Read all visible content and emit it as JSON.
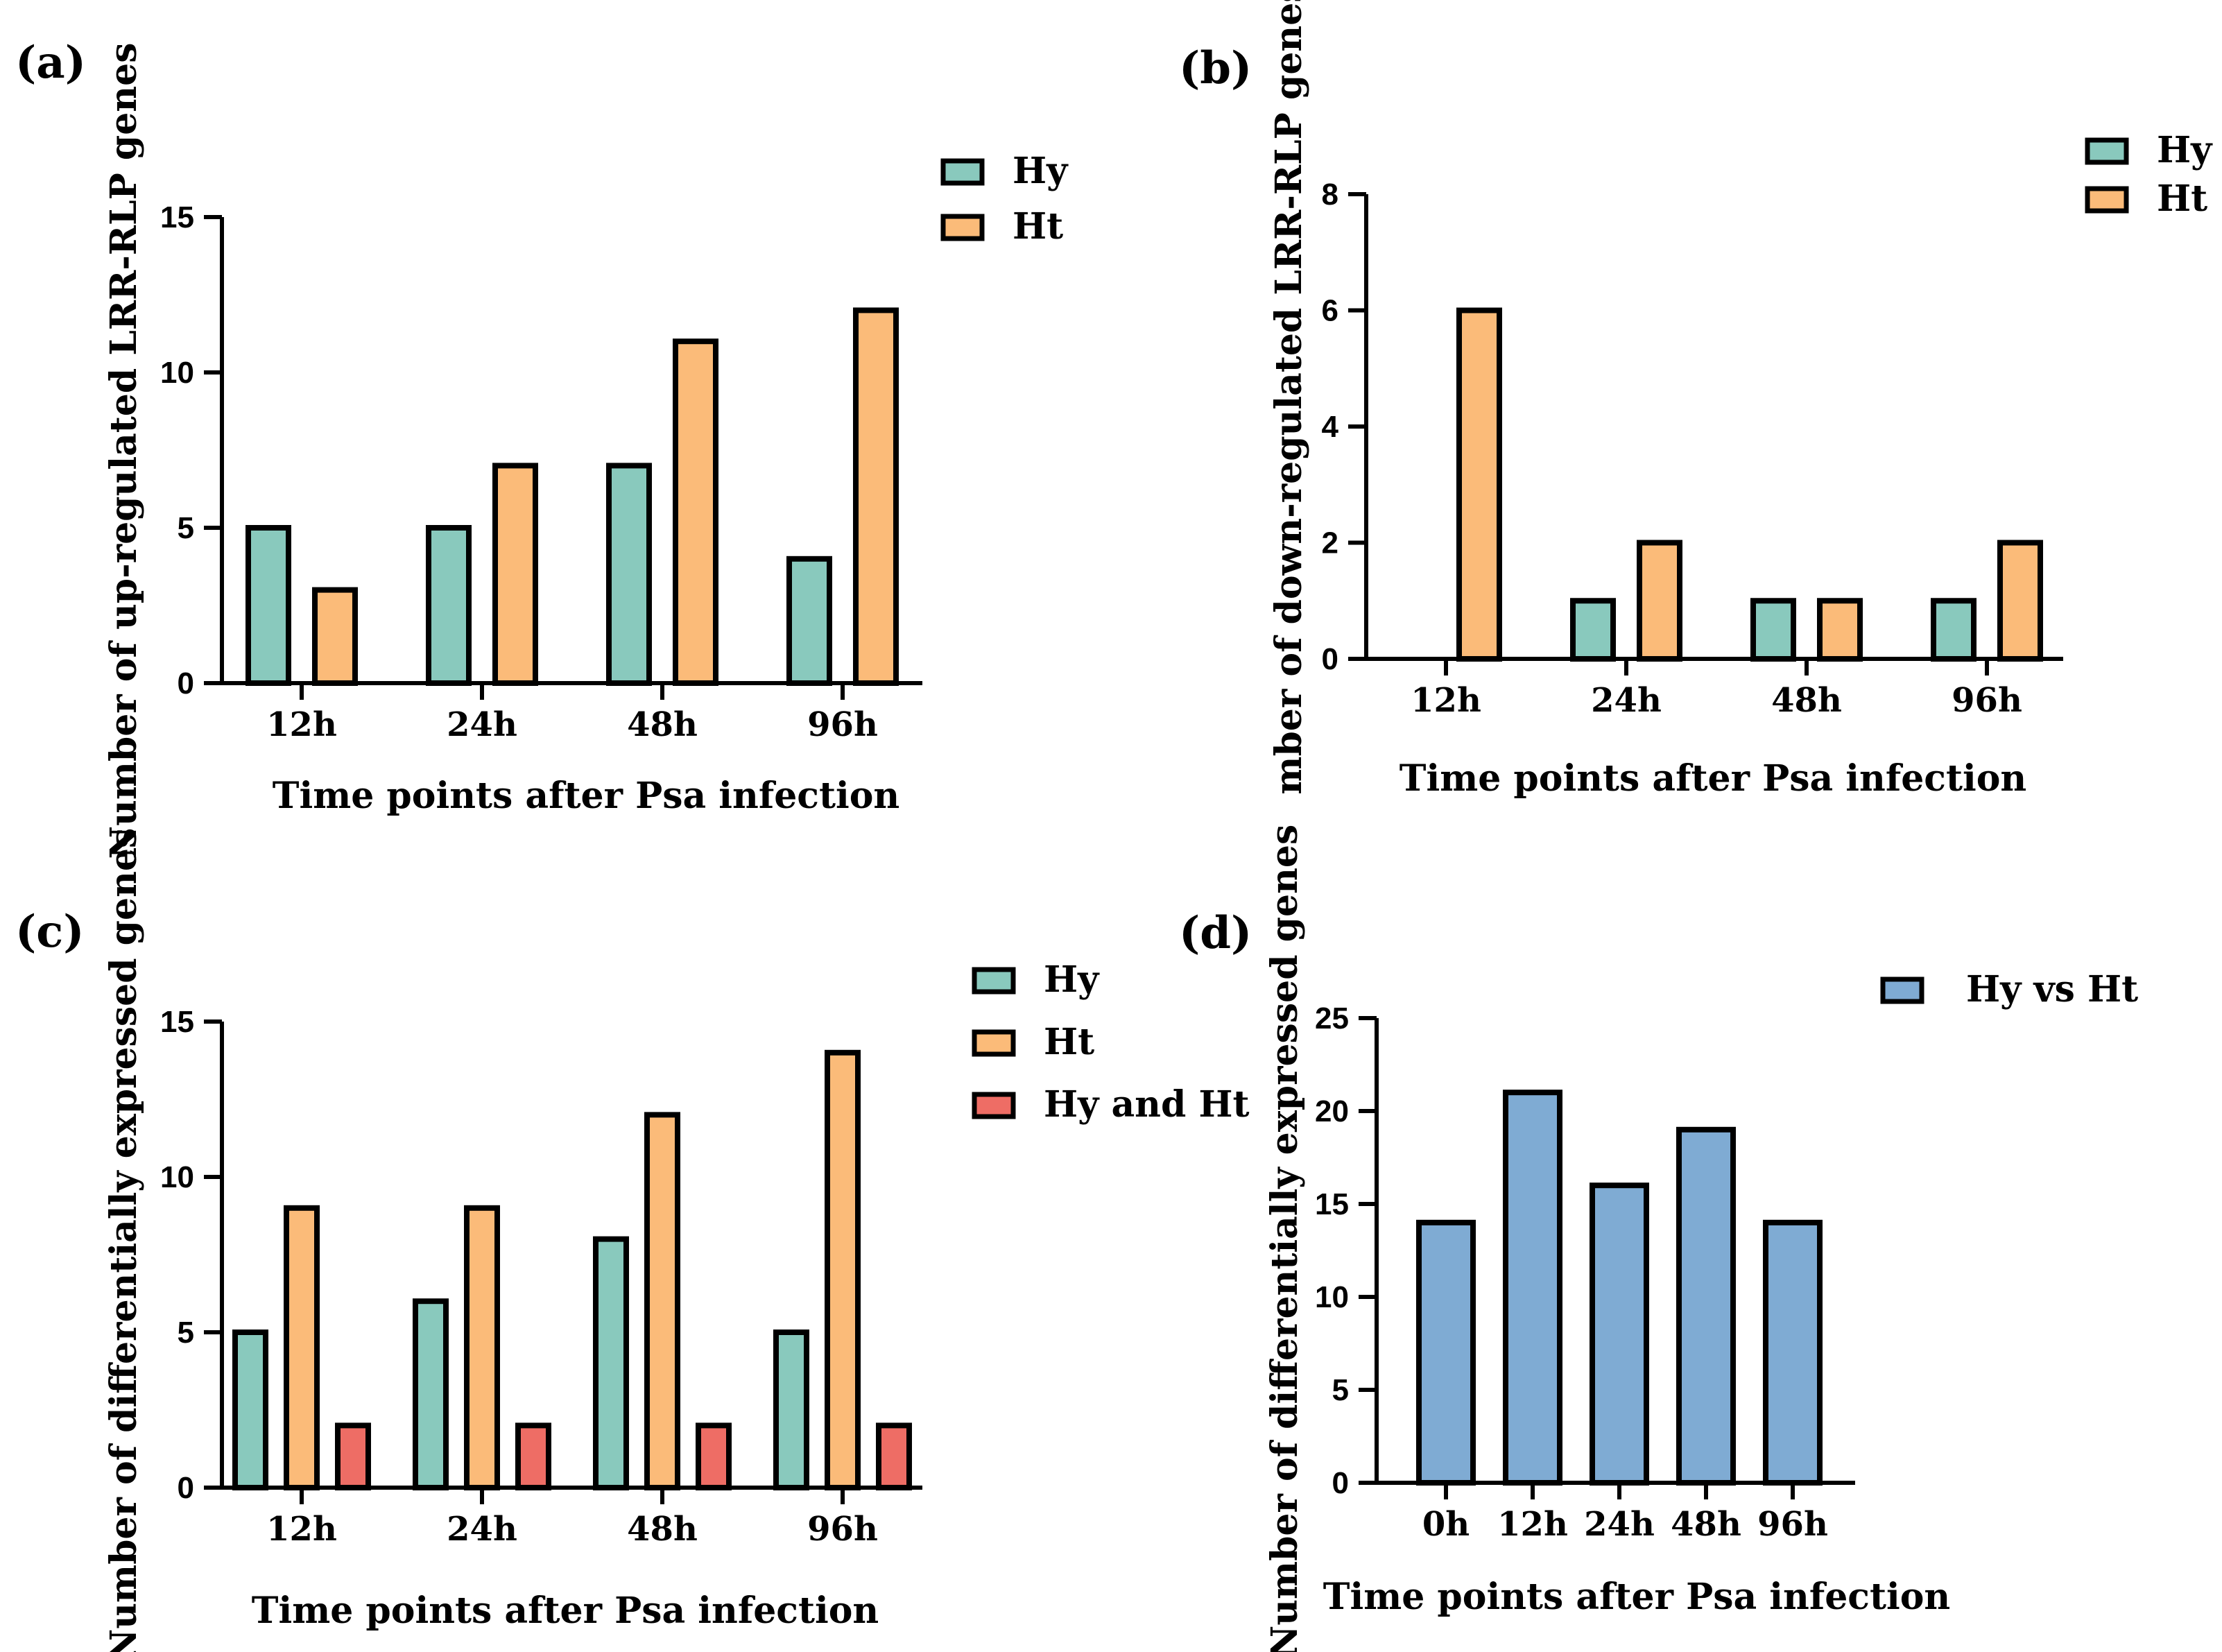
{
  "colors": {
    "Hy": "#89c9bd",
    "Ht": "#fbbb79",
    "Hy and Ht": "#ee6d65",
    "Hy vs Ht": "#7fabd3",
    "stroke": "#000000"
  },
  "chart_data": [
    {
      "label": "(a)",
      "type": "bar",
      "categories": [
        "12h",
        "24h",
        "48h",
        "96h"
      ],
      "series": [
        {
          "name": "Hy",
          "values": [
            5,
            5,
            7,
            4
          ]
        },
        {
          "name": "Ht",
          "values": [
            3,
            7,
            11,
            12
          ]
        }
      ],
      "xlabel": "Time points after Psa infection",
      "ylabel": "Number of up-regulated LRR-RLP genes",
      "ylim": [
        0,
        15
      ],
      "yticks": [
        0,
        5,
        10,
        15
      ],
      "legend": "top-right"
    },
    {
      "label": "(b)",
      "type": "bar",
      "categories": [
        "12h",
        "24h",
        "48h",
        "96h"
      ],
      "series": [
        {
          "name": "Hy",
          "values": [
            0,
            1,
            1,
            1
          ]
        },
        {
          "name": "Ht",
          "values": [
            6,
            2,
            1,
            2
          ]
        }
      ],
      "xlabel": "Time points after Psa infection",
      "ylabel": "mber of down-regulated LRR-RLP genes",
      "ylim": [
        0,
        8
      ],
      "yticks": [
        0,
        2,
        4,
        6,
        8
      ],
      "legend": "top-right"
    },
    {
      "label": "(c)",
      "type": "bar",
      "categories": [
        "12h",
        "24h",
        "48h",
        "96h"
      ],
      "series": [
        {
          "name": "Hy",
          "values": [
            5,
            6,
            8,
            5
          ]
        },
        {
          "name": "Ht",
          "values": [
            9,
            9,
            12,
            14
          ]
        },
        {
          "name": "Hy and Ht",
          "values": [
            2,
            2,
            2,
            2
          ]
        }
      ],
      "xlabel": "Time points after Psa infection",
      "ylabel": "Number of differentially expressed genes",
      "ylim": [
        0,
        15
      ],
      "yticks": [
        0,
        5,
        10,
        15
      ],
      "legend": "top-right"
    },
    {
      "label": "(d)",
      "type": "bar",
      "categories": [
        "0h",
        "12h",
        "24h",
        "48h",
        "96h"
      ],
      "series": [
        {
          "name": "Hy vs Ht",
          "values": [
            14,
            21,
            16,
            19,
            14
          ]
        }
      ],
      "xlabel": "Time points after Psa infection",
      "ylabel": "Number of differentially expressed genes",
      "ylim": [
        0,
        25
      ],
      "yticks": [
        0,
        5,
        10,
        15,
        20,
        25
      ],
      "legend": "top-right"
    }
  ]
}
